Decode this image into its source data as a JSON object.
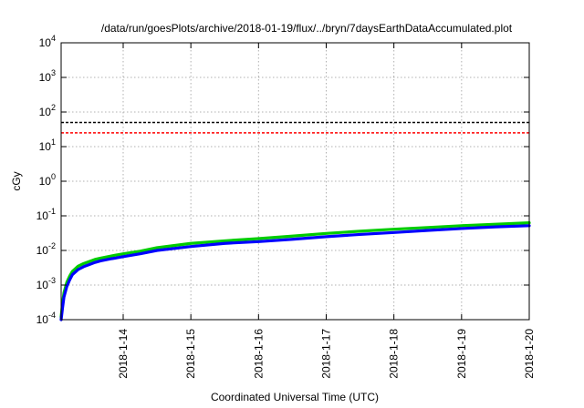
{
  "chart_data": {
    "type": "line",
    "title": "/data/run/goesPlots/archive/2018-01-19/flux/../bryn/7daysEarthDataAccumulated.plot",
    "xlabel": "Coordinated Universal Time (UTC)",
    "ylabel": "cGy",
    "yscale": "log",
    "ylim": [
      0.0001,
      10000
    ],
    "xlim": [
      "2018-01-13T02:00",
      "2018-01-20T00:00"
    ],
    "x_ticks": [
      "2018-1-14",
      "2018-1-15",
      "2018-1-16",
      "2018-1-17",
      "2018-1-18",
      "2018-1-19",
      "2018-1-20"
    ],
    "y_ticks": [
      {
        "base": "10",
        "exp": "-4"
      },
      {
        "base": "10",
        "exp": "-3"
      },
      {
        "base": "10",
        "exp": "-2"
      },
      {
        "base": "10",
        "exp": "-1"
      },
      {
        "base": "10",
        "exp": "0"
      },
      {
        "base": "10",
        "exp": "1"
      },
      {
        "base": "10",
        "exp": "2"
      },
      {
        "base": "10",
        "exp": "3"
      },
      {
        "base": "10",
        "exp": "4"
      }
    ],
    "grid": true,
    "legend": "none",
    "reference_lines": [
      {
        "y": 50,
        "color": "#000000",
        "style": "dashed"
      },
      {
        "y": 25,
        "color": "#ff0000",
        "style": "dashed"
      }
    ],
    "series": [
      {
        "color": "#00cc00",
        "x": [
          "2018-01-13T02:00",
          "2018-01-13T02:30",
          "2018-01-13T03:00",
          "2018-01-13T04:00",
          "2018-01-13T05:00",
          "2018-01-13T06:00",
          "2018-01-13T08:00",
          "2018-01-13T10:00",
          "2018-01-13T12:00",
          "2018-01-13T14:00",
          "2018-01-13T16:00",
          "2018-01-13T20:00",
          "2018-01-14T00:00",
          "2018-01-14T06:00",
          "2018-01-14T12:00",
          "2018-01-15T00:00",
          "2018-01-15T12:00",
          "2018-01-16T00:00",
          "2018-01-16T12:00",
          "2018-01-17T00:00",
          "2018-01-17T12:00",
          "2018-01-18T00:00",
          "2018-01-18T12:00",
          "2018-01-19T00:00",
          "2018-01-19T12:00",
          "2018-01-20T00:00"
        ],
        "values": [
          0.00012,
          0.0003,
          0.0006,
          0.0012,
          0.0018,
          0.0025,
          0.0035,
          0.0042,
          0.0048,
          0.0055,
          0.006,
          0.007,
          0.008,
          0.0095,
          0.012,
          0.016,
          0.019,
          0.022,
          0.026,
          0.031,
          0.036,
          0.041,
          0.046,
          0.052,
          0.057,
          0.063
        ]
      },
      {
        "color": "#0000ff",
        "x": [
          "2018-01-13T02:00",
          "2018-01-13T02:30",
          "2018-01-13T03:00",
          "2018-01-13T04:00",
          "2018-01-13T05:00",
          "2018-01-13T06:00",
          "2018-01-13T08:00",
          "2018-01-13T10:00",
          "2018-01-13T12:00",
          "2018-01-13T14:00",
          "2018-01-13T16:00",
          "2018-01-13T20:00",
          "2018-01-14T00:00",
          "2018-01-14T06:00",
          "2018-01-14T12:00",
          "2018-01-15T00:00",
          "2018-01-15T12:00",
          "2018-01-16T00:00",
          "2018-01-16T12:00",
          "2018-01-17T00:00",
          "2018-01-17T12:00",
          "2018-01-18T00:00",
          "2018-01-18T12:00",
          "2018-01-19T00:00",
          "2018-01-19T12:00",
          "2018-01-20T00:00"
        ],
        "values": [
          0.0001,
          0.00022,
          0.00045,
          0.0009,
          0.0014,
          0.002,
          0.0028,
          0.0034,
          0.0039,
          0.0045,
          0.005,
          0.0058,
          0.0066,
          0.008,
          0.01,
          0.013,
          0.016,
          0.018,
          0.021,
          0.025,
          0.029,
          0.033,
          0.038,
          0.043,
          0.048,
          0.052
        ]
      }
    ]
  }
}
